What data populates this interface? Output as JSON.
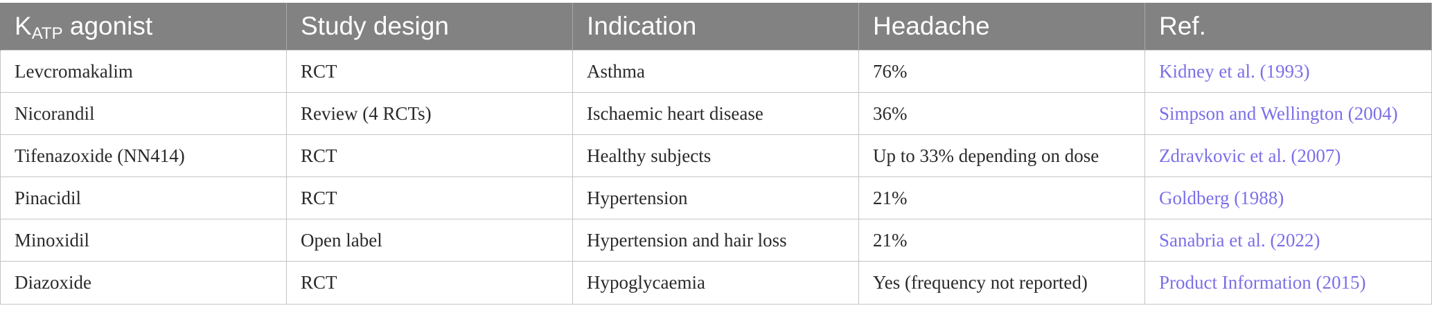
{
  "table": {
    "header": {
      "agonist_main": "K",
      "agonist_sub": "ATP",
      "agonist_rest": " agonist",
      "design": "Study design",
      "indication": "Indication",
      "headache": "Headache",
      "ref": "Ref."
    },
    "rows": [
      {
        "agonist": "Levcromakalim",
        "design": "RCT",
        "indication": "Asthma",
        "headache": "76%",
        "ref": "Kidney et al. (1993)"
      },
      {
        "agonist": "Nicorandil",
        "design": "Review (4 RCTs)",
        "indication": "Ischaemic heart disease",
        "headache": "36%",
        "ref": "Simpson and Wellington (2004)"
      },
      {
        "agonist": "Tifenazoxide (NN414)",
        "design": "RCT",
        "indication": "Healthy subjects",
        "headache": "Up to 33% depending on dose",
        "ref": "Zdravkovic et al. (2007)"
      },
      {
        "agonist": "Pinacidil",
        "design": "RCT",
        "indication": "Hypertension",
        "headache": "21%",
        "ref": "Goldberg (1988)"
      },
      {
        "agonist": "Minoxidil",
        "design": "Open label",
        "indication": "Hypertension and hair loss",
        "headache": "21%",
        "ref": "Sanabria et al. (2022)"
      },
      {
        "agonist": "Diazoxide",
        "design": "RCT",
        "indication": "Hypoglycaemia",
        "headache": "Yes (frequency not reported)",
        "ref": "Product Information (2015)"
      }
    ],
    "colors": {
      "header_bg": "#818281",
      "header_text": "#ffffff",
      "body_text": "#2a2a2a",
      "link": "#7b6fe8",
      "border": "#c4c4c4"
    }
  }
}
